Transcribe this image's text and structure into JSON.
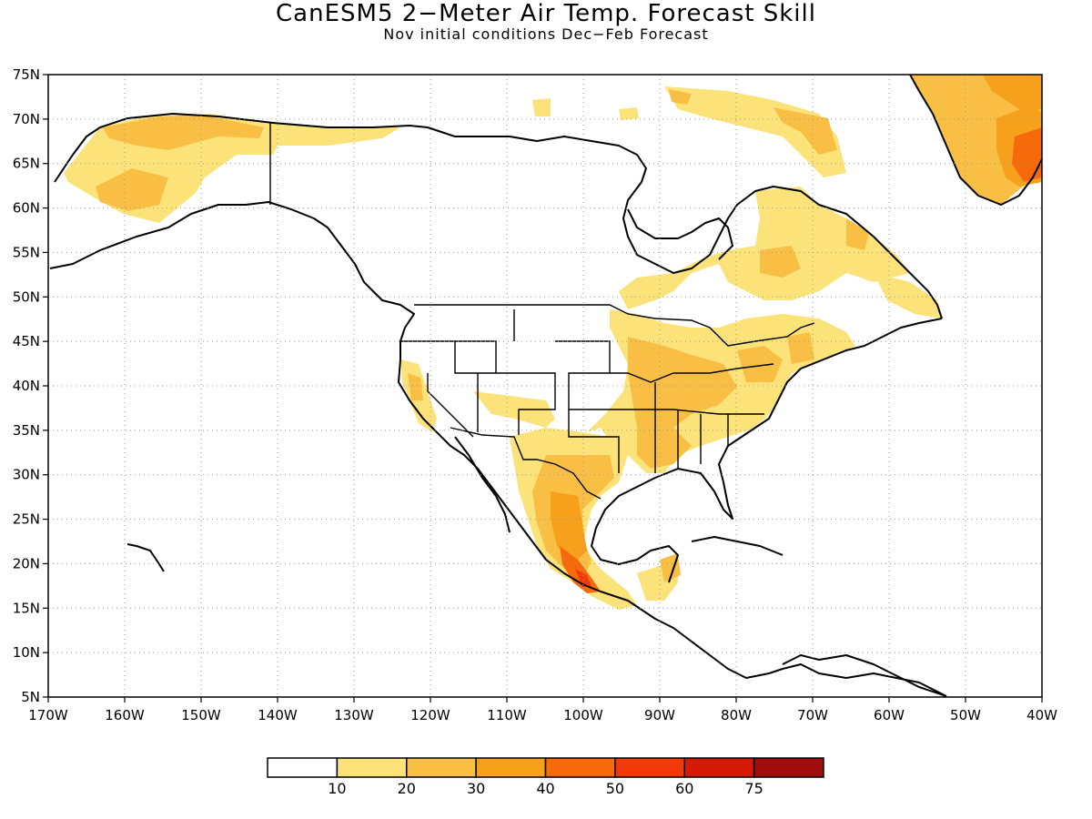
{
  "title": "CanESM5 2−Meter Air Temp. Forecast Skill",
  "subtitle": "Nov initial conditions  Dec−Feb Forecast",
  "map": {
    "lon_range": [
      -170,
      -40
    ],
    "lat_range": [
      5,
      75
    ],
    "lon_ticks": [
      "170W",
      "160W",
      "150W",
      "140W",
      "130W",
      "120W",
      "110W",
      "100W",
      "90W",
      "80W",
      "70W",
      "60W",
      "50W",
      "40W"
    ],
    "lat_ticks": [
      "75N",
      "70N",
      "65N",
      "60N",
      "55N",
      "50N",
      "45N",
      "40N",
      "35N",
      "30N",
      "25N",
      "20N",
      "15N",
      "10N",
      "5N"
    ],
    "gridlines": "dotted"
  },
  "colorbar": {
    "labels": [
      "10",
      "20",
      "30",
      "40",
      "50",
      "60",
      "75"
    ],
    "colors": [
      "#ffffff",
      "#fbe37a",
      "#f9bf45",
      "#f7a01c",
      "#f66a0c",
      "#f23a08",
      "#d61a08",
      "#a00d0a"
    ]
  },
  "colors": {
    "c10_20": "#fbe37a",
    "c20_30": "#f9bf45",
    "c30_40": "#f7a01c",
    "c40_50": "#f66a0c",
    "c50_60": "#f23a08"
  }
}
